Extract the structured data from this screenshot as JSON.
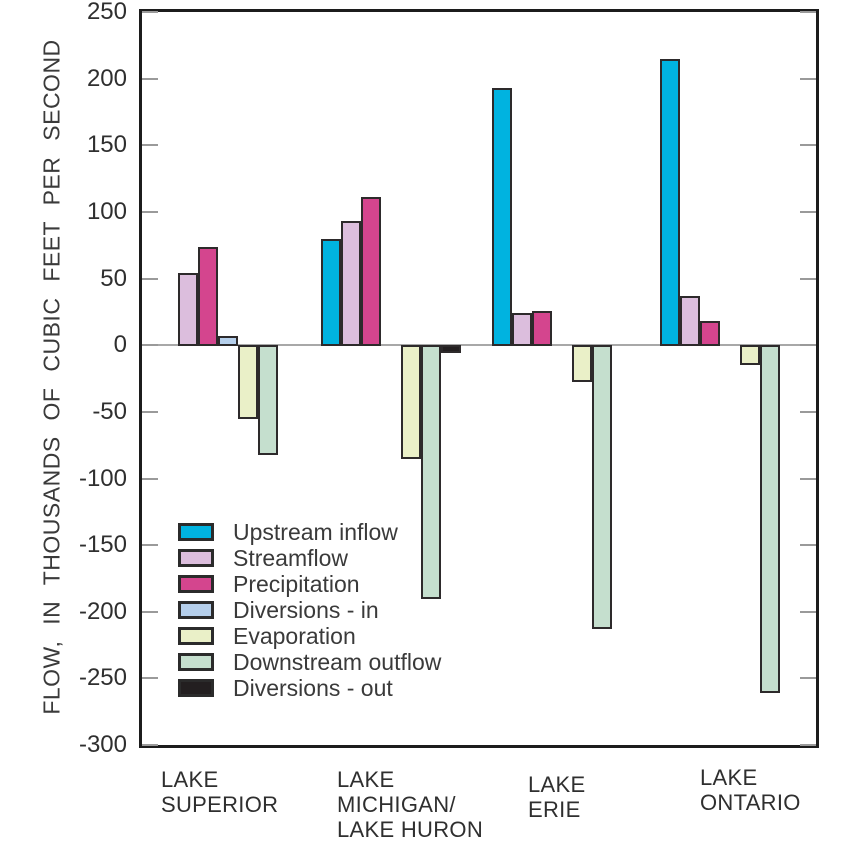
{
  "chart_data": {
    "type": "bar",
    "title": "",
    "xlabel": "",
    "ylabel": "FLOW, IN THOUSANDS OF CUBIC FEET PER SECOND",
    "ylim": [
      -300,
      250
    ],
    "y_ticks": [
      250,
      200,
      150,
      100,
      50,
      0,
      -50,
      -100,
      -150,
      -200,
      -250,
      -300
    ],
    "grid": "zero-line-only",
    "legend_position": "inside-lower-left",
    "categories": [
      "LAKE SUPERIOR",
      "LAKE MICHIGAN/ LAKE HURON",
      "LAKE ERIE",
      "LAKE ONTARIO"
    ],
    "category_label_lines": [
      [
        "LAKE",
        "SUPERIOR"
      ],
      [
        "LAKE",
        "MICHIGAN/",
        "LAKE HURON"
      ],
      [
        "LAKE",
        "ERIE"
      ],
      [
        "LAKE",
        "ONTARIO"
      ]
    ],
    "series": [
      {
        "name": "Upstream inflow",
        "color": "#00b3e0",
        "values": [
          null,
          80,
          193,
          215
        ]
      },
      {
        "name": "Streamflow",
        "color": "#dcbedd",
        "values": [
          54,
          93,
          24,
          37
        ]
      },
      {
        "name": "Precipitation",
        "color": "#d4458e",
        "values": [
          74,
          111,
          26,
          18
        ]
      },
      {
        "name": "Diversions - in",
        "color": "#b5cfeb",
        "values": [
          7,
          null,
          null,
          null
        ]
      },
      {
        "name": "Evaporation",
        "color": "#eaf0c8",
        "values": [
          -55,
          -85,
          -27,
          -14
        ]
      },
      {
        "name": "Downstream outflow",
        "color": "#c5dfce",
        "values": [
          -82,
          -190,
          -212,
          -260
        ]
      },
      {
        "name": "Diversions - out",
        "color": "#231f20",
        "values": [
          null,
          -5,
          null,
          null
        ]
      }
    ],
    "legend": [
      {
        "label": "Upstream inflow",
        "color": "#00b3e0"
      },
      {
        "label": "Streamflow",
        "color": "#dcbedd"
      },
      {
        "label": "Precipitation",
        "color": "#d4458e"
      },
      {
        "label": "Diversions - in",
        "color": "#b5cfeb"
      },
      {
        "label": "Evaporation",
        "color": "#eaf0c8"
      },
      {
        "label": "Downstream outflow",
        "color": "#c5dfce"
      },
      {
        "label": "Diversions - out",
        "color": "#231f20"
      }
    ],
    "colors": {
      "plot_border": "#1c1c1c",
      "bar_border": "#2d2a2b",
      "zero_line": "#a8a8a8",
      "tick": "#9a9a9a",
      "text": "#3a3a3a"
    }
  }
}
